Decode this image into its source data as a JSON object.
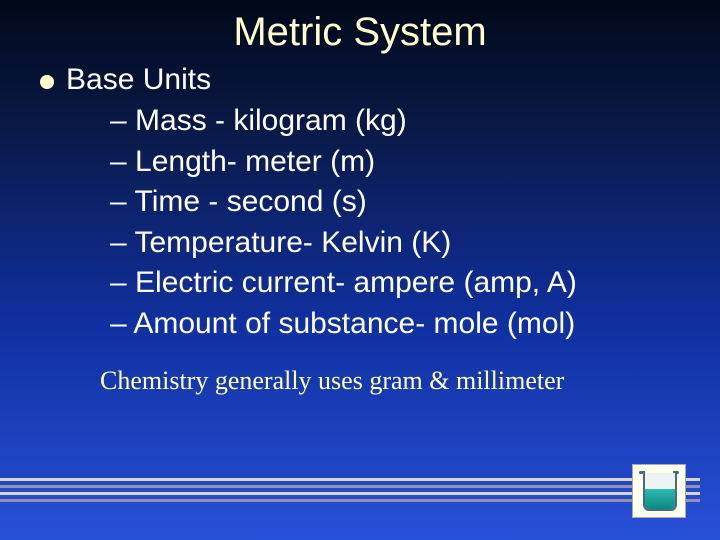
{
  "slide": {
    "title": "Metric System",
    "title_color": "#ffffcc",
    "title_fontsize": 40,
    "background_gradient": [
      "#000818",
      "#0a1a4a",
      "#1030a0",
      "#2850d8"
    ],
    "bullet": {
      "label": "Base Units",
      "color": "#ffffff",
      "fontsize": 30,
      "dot_color": "#ffffcc"
    },
    "sub_items": [
      "– Mass - kilogram (kg)",
      "– Length- meter (m)",
      "– Time - second (s)",
      "– Temperature- Kelvin (K)",
      "– Electric current- ampere (amp, A)",
      "– Amount of substance- mole  (mol)"
    ],
    "sub_item_color": "#ffffff",
    "sub_item_fontsize": 30,
    "note": "Chemistry generally uses gram & millimeter",
    "note_color": "#ffffcc",
    "note_fontsize": 26,
    "footer_bars": {
      "light_color": "#d8d8c8",
      "dark_color": "#9494a8"
    },
    "beaker": {
      "bg": "#fffff0",
      "glass_border": "#4a6a80",
      "liquid_colors": [
        "#2eb8b0",
        "#0a8a82"
      ]
    }
  }
}
